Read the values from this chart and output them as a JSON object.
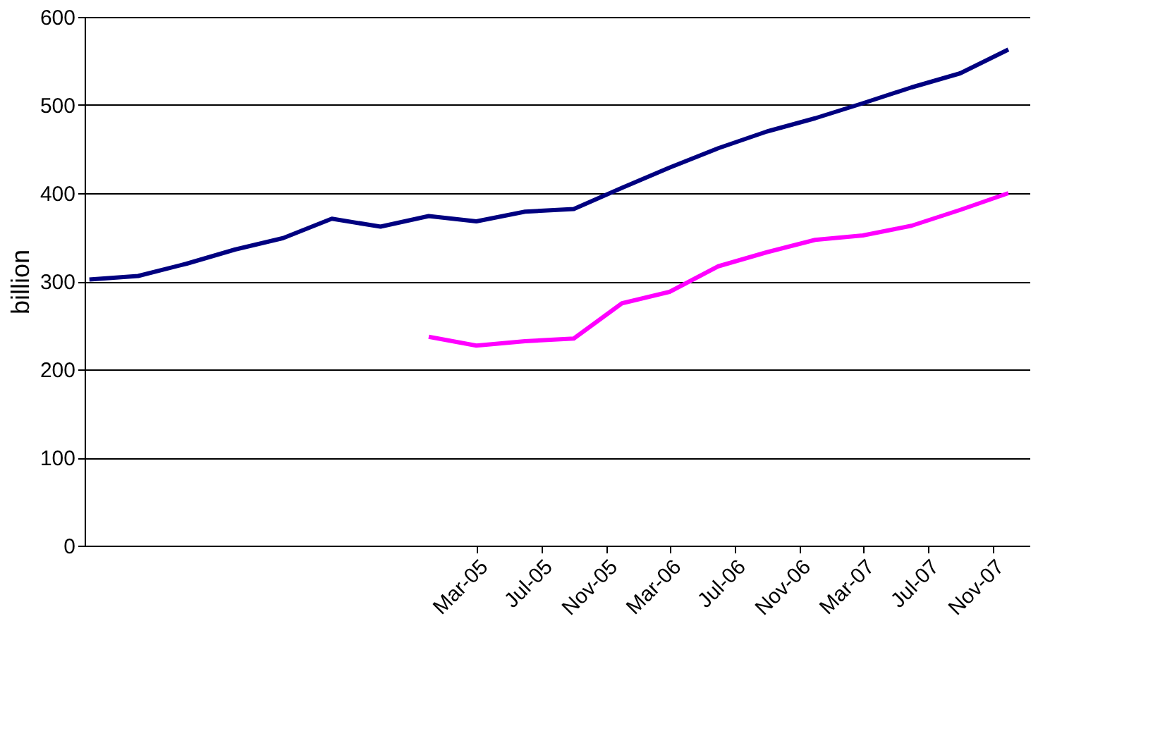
{
  "chart_data": {
    "type": "line",
    "ylabel": "billion",
    "x": [
      "2003-03",
      "2003-06",
      "2003-09",
      "2003-12",
      "2004-03",
      "2004-06",
      "2004-09",
      "2004-12",
      "2005-03",
      "2005-06",
      "2005-09",
      "2005-12",
      "2006-03",
      "2006-06",
      "2006-09",
      "2006-12",
      "2007-03",
      "2007-06",
      "2007-09",
      "2007-12"
    ],
    "series": [
      {
        "color": "#000080",
        "values": [
          302,
          306,
          320,
          336,
          349,
          371,
          362,
          374,
          368,
          379,
          382,
          406,
          429,
          451,
          470,
          485,
          502,
          520,
          536,
          563
        ]
      },
      {
        "color": "#ff00ff",
        "values": [
          null,
          null,
          null,
          null,
          null,
          null,
          null,
          237,
          227,
          232,
          235,
          275,
          288,
          317,
          333,
          347,
          352,
          363,
          381,
          400
        ]
      }
    ],
    "xlim": [
      "2003-02-20",
      "2008-01-10"
    ],
    "xticks": [
      {
        "value": "2005-03",
        "label": "Mar-05"
      },
      {
        "value": "2005-07",
        "label": "Jul-05"
      },
      {
        "value": "2005-11",
        "label": "Nov-05"
      },
      {
        "value": "2006-03",
        "label": "Mar-06"
      },
      {
        "value": "2006-07",
        "label": "Jul-06"
      },
      {
        "value": "2006-11",
        "label": "Nov-06"
      },
      {
        "value": "2007-03",
        "label": "Mar-07"
      },
      {
        "value": "2007-07",
        "label": "Jul-07"
      },
      {
        "value": "2007-11",
        "label": "Nov-07"
      }
    ],
    "ylim": [
      0,
      600
    ],
    "yticks": [
      0,
      100,
      200,
      300,
      400,
      500,
      600
    ],
    "grid": "y",
    "marker": "none",
    "line_style": "solid",
    "legend": false
  }
}
